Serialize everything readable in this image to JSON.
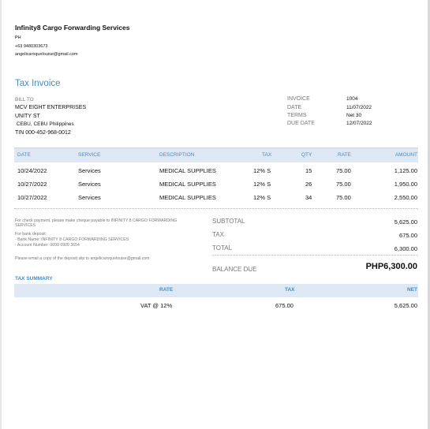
{
  "company": {
    "name": "Infinity8 Cargo Forwarding Services",
    "country": "PH",
    "phone": "+63 9480303673",
    "email": "angelicaroquelouise@gmail.com"
  },
  "document_title": "Tax Invoice",
  "bill_to": {
    "label": "BILL TO",
    "lines": [
      "MCV EIGHT ENTERPRISES",
      "UNITY ST",
      " CEBU, CEBU Philippines",
      "TIN 000-452-968-0012"
    ]
  },
  "meta": {
    "invoice_label": "INVOICE",
    "invoice": "1004",
    "date_label": "DATE",
    "date": "11/07/2022",
    "terms_label": "TERMS",
    "terms": "Net 30",
    "due_label": "DUE DATE",
    "due": "12/07/2022"
  },
  "items_table": {
    "headers": [
      "DATE",
      "SERVICE",
      "DESCRIPTION",
      "TAX",
      "QTY",
      "RATE",
      "AMOUNT"
    ],
    "rows": [
      [
        "10/24/2022",
        "Services",
        "MEDICAL SUPPLIES",
        "12% S",
        "15",
        "75.00",
        "1,125.00"
      ],
      [
        "10/27/2022",
        "Services",
        "MEDICAL SUPPLIES",
        "12% S",
        "26",
        "75.00",
        "1,950.00"
      ],
      [
        "10/27/2022",
        "Services",
        "MEDICAL SUPPLIES",
        "12% S",
        "34",
        "75.00",
        "2,550.00"
      ]
    ]
  },
  "notes": {
    "payment": "For check payment, please make  cheque payable to INFINITY 8 CARGO FORWARDING SERVICES",
    "bank_label": "For bank deposit:",
    "bank_name": "- Bank Name: INFINITY 8 CARGO FORWARDING SERVICES",
    "account": "- Account Number: 0099 0900 3654",
    "deposit_slip": "Please email a copy of the deposit slip to angelicaroquelouise@gmail.com"
  },
  "totals": {
    "subtotal_label": "SUBTOTAL",
    "subtotal": "5,625.00",
    "tax_label": "TAX",
    "tax": "675.00",
    "total_label": "TOTAL",
    "total": "6,300.00",
    "balance_label": "BALANCE DUE",
    "balance": "PHP6,300.00"
  },
  "tax_summary": {
    "title": "TAX SUMMARY",
    "headers": [
      "RATE",
      "TAX",
      "NET"
    ],
    "row": [
      "VAT @ 12%",
      "675.00",
      "5,625.00"
    ]
  }
}
